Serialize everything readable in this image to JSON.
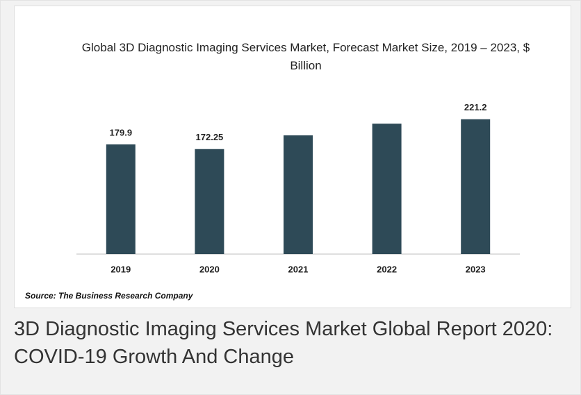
{
  "chart_data": {
    "type": "bar",
    "title": "Global 3D Diagnostic Imaging Services Market, Forecast Market Size, 2019 – 2023, $ Billion",
    "categories": [
      "2019",
      "2020",
      "2021",
      "2022",
      "2023"
    ],
    "values": [
      179.9,
      172.25,
      194.8,
      214,
      221.2
    ],
    "value_labels": [
      "179.9",
      "172.25",
      null,
      null,
      "221.2"
    ],
    "color": "#2e4a57",
    "ylim": [
      0,
      250
    ],
    "source": "Source: The Business Research Company"
  },
  "caption": "3D Diagnostic Imaging Services Market Global Report 2020: COVID-19 Growth And Change"
}
